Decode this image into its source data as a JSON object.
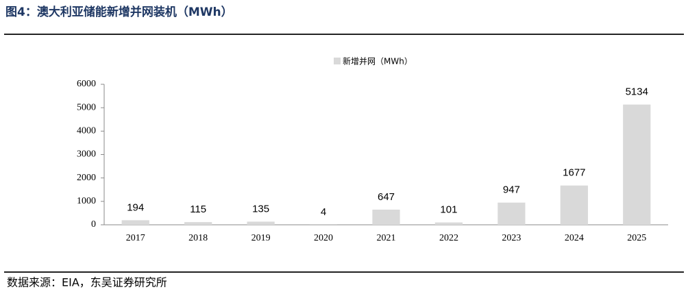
{
  "chart_data": {
    "type": "bar",
    "title": "图4：澳大利亚储能新增并网装机（MWh）",
    "source": "数据来源：EIA，东吴证券研究所",
    "categories": [
      "2017",
      "2018",
      "2019",
      "2020",
      "2021",
      "2022",
      "2023",
      "2024",
      "2025"
    ],
    "series": [
      {
        "name": "新增并网（MWh）",
        "color": "#d9d9d9",
        "values": [
          194,
          115,
          135,
          4,
          647,
          101,
          947,
          1677,
          5134
        ]
      }
    ],
    "ylim": [
      0,
      6000
    ],
    "yticks": [
      0,
      1000,
      2000,
      3000,
      4000,
      5000,
      6000
    ],
    "grid": false,
    "legend": "top"
  }
}
